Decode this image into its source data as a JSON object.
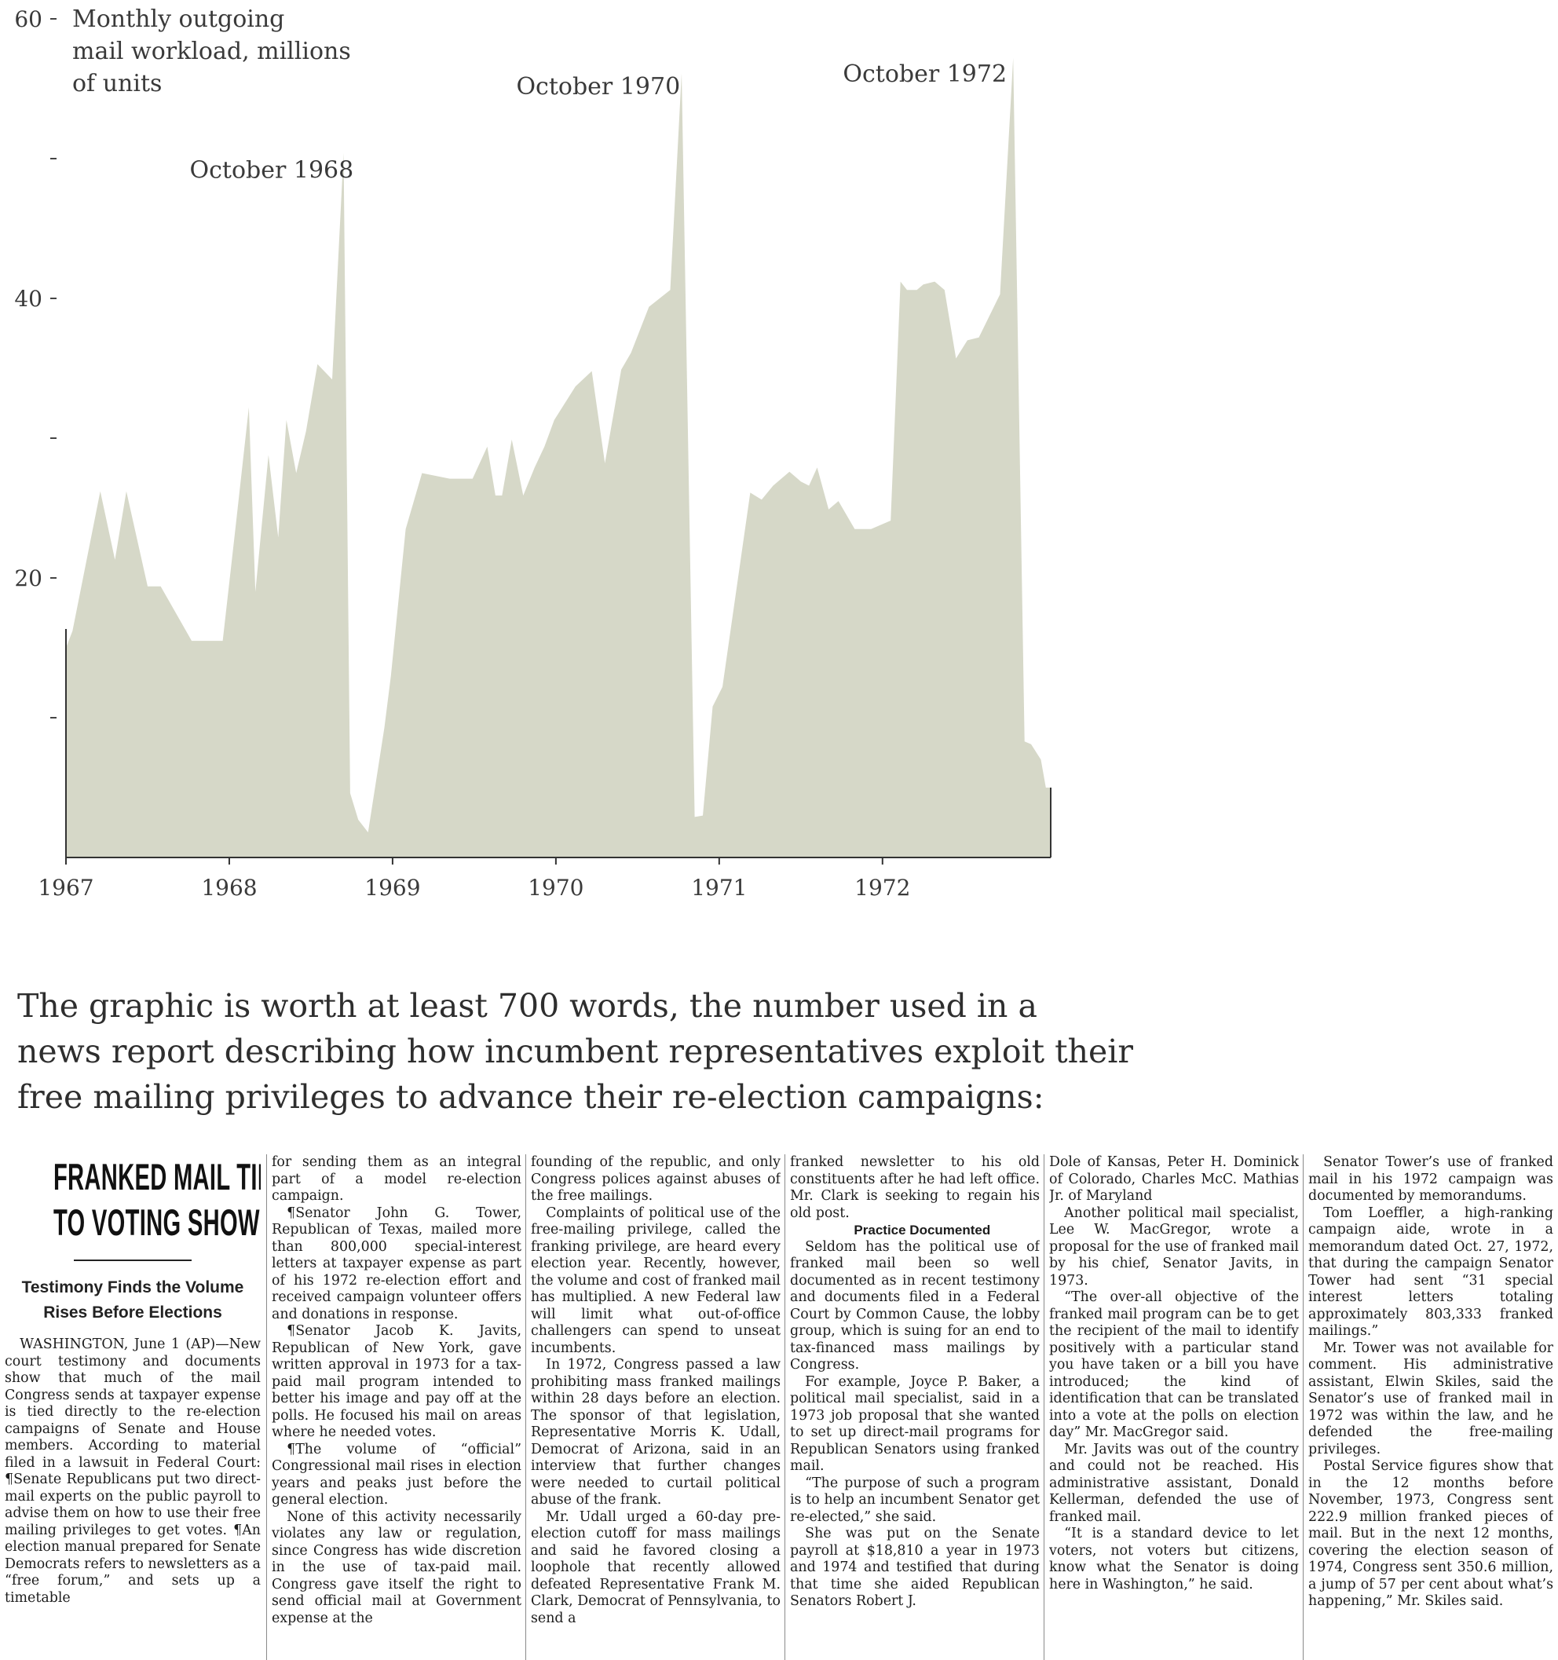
{
  "chart_data": {
    "type": "area",
    "ylabel": "Monthly outgoing mail workload, millions of units",
    "ylim": [
      0,
      60
    ],
    "yticks": [
      {
        "value": 60,
        "label": "60"
      },
      {
        "value": 50,
        "label": ""
      },
      {
        "value": 40,
        "label": "40"
      },
      {
        "value": 30,
        "label": ""
      },
      {
        "value": 20,
        "label": "20"
      },
      {
        "value": 10,
        "label": ""
      }
    ],
    "xlim": [
      1967,
      1973.03
    ],
    "xticks": [
      {
        "value": 1967,
        "label": "1967"
      },
      {
        "value": 1968,
        "label": "1968"
      },
      {
        "value": 1969,
        "label": "1969"
      },
      {
        "value": 1970,
        "label": "1970"
      },
      {
        "value": 1971,
        "label": "1971"
      },
      {
        "value": 1972,
        "label": "1972"
      }
    ],
    "x": [
      1967.0,
      1967.04,
      1967.21,
      1967.3,
      1967.37,
      1967.5,
      1967.58,
      1967.77,
      1967.88,
      1967.96,
      1968.04,
      1968.12,
      1968.16,
      1968.24,
      1968.3,
      1968.35,
      1968.41,
      1968.47,
      1968.54,
      1968.63,
      1968.7,
      1968.74,
      1968.79,
      1968.85,
      1968.95,
      1968.99,
      1969.08,
      1969.18,
      1969.35,
      1969.49,
      1969.58,
      1969.63,
      1969.67,
      1969.73,
      1969.8,
      1969.87,
      1969.93,
      1969.99,
      1970.12,
      1970.22,
      1970.3,
      1970.4,
      1970.46,
      1970.57,
      1970.7,
      1970.77,
      1970.85,
      1970.9,
      1970.96,
      1971.02,
      1971.19,
      1971.26,
      1971.33,
      1971.43,
      1971.5,
      1971.55,
      1971.6,
      1971.67,
      1971.73,
      1971.83,
      1971.93,
      1971.99,
      1972.05,
      1972.11,
      1972.15,
      1972.21,
      1972.25,
      1972.32,
      1972.38,
      1972.45,
      1972.52,
      1972.59,
      1972.72,
      1972.8,
      1972.87,
      1972.91,
      1972.97,
      1973.0,
      1973.03
    ],
    "values": [
      15.0,
      16.2,
      26.2,
      21.3,
      26.2,
      19.4,
      19.4,
      15.5,
      15.5,
      15.5,
      23.8,
      32.2,
      19.0,
      28.8,
      22.9,
      31.3,
      27.5,
      30.5,
      35.3,
      34.2,
      50.4,
      4.6,
      2.7,
      1.8,
      9.3,
      13.0,
      23.5,
      27.5,
      27.1,
      27.1,
      29.4,
      25.9,
      25.9,
      29.9,
      25.9,
      27.9,
      29.4,
      31.3,
      33.7,
      34.8,
      28.2,
      34.9,
      36.1,
      39.4,
      40.6,
      56.1,
      2.9,
      3.0,
      10.8,
      12.2,
      26.1,
      25.6,
      26.6,
      27.6,
      26.9,
      26.6,
      27.9,
      24.9,
      25.5,
      23.5,
      23.5,
      23.8,
      24.1,
      41.2,
      40.6,
      40.6,
      41.0,
      41.2,
      40.6,
      35.7,
      37.0,
      37.2,
      40.3,
      57.2,
      8.3,
      8.1,
      7.0,
      5.0,
      5.0
    ],
    "annotations": [
      {
        "text": "October 1968",
        "x": 1968.79,
        "y": 50.3
      },
      {
        "text": "October 1970",
        "x": 1970.79,
        "y": 56.3
      },
      {
        "text": "October 1972",
        "x": 1972.79,
        "y": 57.2
      }
    ],
    "fill_color": "#d6d8c8",
    "axis_color": "#333333",
    "grid": false,
    "legend": "none"
  },
  "caption": {
    "line1": "The graphic is worth at least 700 words, the number used in a",
    "line2": "news report describing how incumbent representatives exploit their",
    "line3": "free mailing privileges to advance their re-election campaigns:"
  },
  "article": {
    "headline_line1": "FRANKED MAIL TIE",
    "headline_line2": "TO VOTING SHOWN",
    "subhead_line1": "Testimony Finds the Volume",
    "subhead_line2": "Rises Before Elections",
    "col1": "WASHINGTON, June 1 (AP)—New court testimony and documents show that much of the mail Congress sends at taxpayer expense is tied directly to the re-election campaigns of Senate and House members. According to material filed in a lawsuit in Federal Court: ¶Senate Republicans put two direct-mail experts on the public payroll to advise them on how to use their free mailing privileges to get votes. ¶An election manual prepared for Senate Democrats refers to newsletters as a “free forum,” and sets up a timetable",
    "col2_p1": "for sending them as an integral part of a model re-election campaign.",
    "col2_p2": "¶Senator John G. Tower, Republican of Texas, mailed more than 800,000 special-interest letters at taxpayer expense as part of his 1972 re-election effort and received campaign volunteer offers and donations in response.",
    "col2_p3": "¶Senator Jacob K. Javits, Republican of New York, gave written approval in 1973 for a tax-paid mail program intended to better his image and pay off at the polls. He focused his mail on areas where he needed votes.",
    "col2_p4": "¶The volume of “official” Congressional mail rises in election years and peaks just before the general election.",
    "col2_p5": "None of this activity necessarily violates any law or regulation, since Congress has wide discretion in the use of tax-paid mail. Congress gave itself the right to send official mail at Government expense at the",
    "col3_p1": "founding of the republic, and only Congress polices against abuses of the free mailings.",
    "col3_p2": "Complaints of political use of the free-mailing privilege, called the franking privilege, are heard every election year. Recently, however, the volume and cost of franked mail has multiplied. A new Federal law will limit what out-of-office challengers can spend to unseat incumbents.",
    "col3_p3": "In 1972, Congress passed a law prohibiting mass franked mailings within 28 days before an election. The sponsor of that legislation, Representative Morris K. Udall, Democrat of Arizona, said in an interview that further changes were needed to curtail political abuse of the frank.",
    "col3_p4": "Mr. Udall urged a 60-day pre-election cutoff for mass mailings and said he favored closing a loophole that recently allowed defeated Representative Frank M. Clark, Democrat of Pennsylvania, to send a",
    "col4_p1": "franked newsletter to his old constituents after he had left office. Mr. Clark is seeking to regain his old post.",
    "col4_crosshead": "Practice Documented",
    "col4_p2": "Seldom has the political use of franked mail been so well documented as in recent testimony and documents filed in a Federal Court by Common Cause, the lobby group, which is suing for an end to tax-financed mass mailings by Congress.",
    "col4_p3": "For example, Joyce P. Baker, a political mail specialist, said in a 1973 job proposal that she wanted to set up direct-mail programs for Republican Senators using franked mail.",
    "col4_p4": "“The purpose of such a program is to help an incumbent Senator get re-elected,” she said.",
    "col4_p5": "She was put on the Senate payroll at $18,810 a year in 1973 and 1974 and testified that during that time she aided Republican Senators Robert J.",
    "col5_p1": "Dole of Kansas, Peter H. Dominick of Colorado, Charles McC. Mathias Jr. of Maryland",
    "col5_p2": "Another political mail specialist, Lee W. MacGregor, wrote a proposal for the use of franked mail by his chief, Senator Javits, in 1973.",
    "col5_p3": "“The over-all objective of the franked mail program can be to get the recipient of the mail to identify positively with a particular stand you have taken or a bill you have introduced; the kind of identification that can be translated into a vote at the polls on election day” Mr. MacGregor said.",
    "col5_p4": "Mr. Javits was out of the country and could not be reached. His administrative assistant, Donald Kellerman, defended the use of franked mail.",
    "col5_p5": "“It is a standard device to let voters, not voters but citizens, know what the Senator is doing here in Washington,” he said.",
    "col6_p1": "Senator Tower’s use of franked mail in his 1972 campaign was documented by memorandums.",
    "col6_p2": "Tom Loeffler, a high-ranking campaign aide, wrote in a memorandum dated Oct. 27, 1972, that during the campaign Senator Tower had sent “31 special interest letters totaling approximately 803,333 franked mailings.”",
    "col6_p3": "Mr. Tower was not available for comment. His administrative assistant, Elwin Skiles, said the Senator’s use of franked mail in 1972 was within the law, and he defended the free-mailing privileges.",
    "col6_p4": "Postal Service figures show that in the 12 months before November, 1973, Congress sent 222.9 million franked pieces of mail. But in the next 12 months, covering the election season of 1974, Congress sent 350.6 million, a jump of 57 per cent about what’s happening,” Mr. Skiles said."
  }
}
